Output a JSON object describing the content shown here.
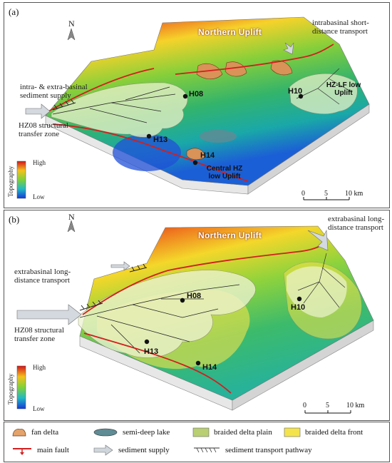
{
  "panels": [
    {
      "letter": "(a)",
      "north": "N",
      "uplift_title": "Northern Uplift",
      "annotations": {
        "intrabasinal": "intrabasinal short-distance transport",
        "intra_extra": "intra- & extra-basinal sediment supply",
        "transfer_zone": "HZ08 structural transfer zone"
      },
      "wells": [
        "H08",
        "H13",
        "H14",
        "H10"
      ],
      "uplifts": [
        "HZ-LF low Uplift",
        "Central HZ low Uplift"
      ],
      "topography": {
        "title": "Topography",
        "high": "High",
        "low": "Low"
      },
      "scale": {
        "ticks": [
          "0",
          "5",
          "10 km"
        ]
      }
    },
    {
      "letter": "(b)",
      "north": "N",
      "uplift_title": "Northern Uplift",
      "annotations": {
        "extrabasinal_right": "extrabasinal long-distance transport",
        "extrabasinal_left": "extrabasinal long-distance transport",
        "transfer_zone": "HZ08 structural transfer zone"
      },
      "wells": [
        "H08",
        "H10",
        "H13",
        "H14"
      ],
      "topography": {
        "title": "Topography",
        "high": "High",
        "low": "Low"
      },
      "scale": {
        "ticks": [
          "0",
          "5",
          "10 km"
        ]
      }
    }
  ],
  "legend": {
    "items": [
      {
        "label": "fan delta",
        "icon": "fan-delta-swatch",
        "color": "#e4a36a"
      },
      {
        "label": "semi-deep lake",
        "icon": "lake-swatch",
        "color": "#5f8c95"
      },
      {
        "label": "braided delta plain",
        "icon": "plain-swatch",
        "color": "#b9cf72"
      },
      {
        "label": "braided delta front",
        "icon": "front-swatch",
        "color": "#f4e34a"
      },
      {
        "label": "main fault",
        "icon": "fault-icon",
        "color": "#d11f1f"
      },
      {
        "label": "sediment supply",
        "icon": "arrow-icon",
        "color": "#cfd6dc"
      },
      {
        "label": "sediment transport pathway",
        "icon": "pathway-icon",
        "color": "#333333"
      }
    ]
  }
}
